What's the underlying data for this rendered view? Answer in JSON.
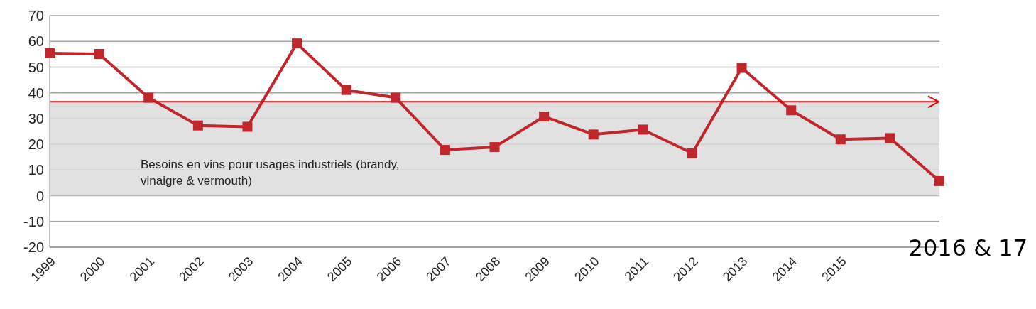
{
  "chart_data": {
    "type": "line",
    "categories": [
      "1999",
      "2000",
      "2001",
      "2002",
      "2003",
      "2004",
      "2005",
      "2006",
      "2007",
      "2008",
      "2009",
      "2010",
      "2011",
      "2012",
      "2013",
      "2014",
      "2015",
      null,
      null
    ],
    "series": [
      {
        "color": "#c0272d",
        "values": [
          55.4,
          55.1,
          38.1,
          27.3,
          26.8,
          59.2,
          41.1,
          38.1,
          17.8,
          18.9,
          30.8,
          23.8,
          25.7,
          16.5,
          49.7,
          33.2,
          21.9,
          22.4,
          5.7
        ]
      }
    ],
    "ylim": [
      -20,
      70
    ],
    "yticks": [
      -20,
      -10,
      0,
      10,
      20,
      30,
      40,
      50,
      60,
      70
    ],
    "grid": "y",
    "marker": "square",
    "line_style": "solid",
    "ref_lines": [
      {
        "axis": "y",
        "value": 36.5,
        "color": "#e00000"
      }
    ],
    "bands": [
      {
        "axis": "y",
        "from": 0,
        "to": 36.5,
        "color": "#d9d9d9",
        "label": "Besoins en vins pour usages industriels (brandy, vinaigre & vermouth)"
      }
    ],
    "annotations": [
      "2016 & 17"
    ]
  }
}
